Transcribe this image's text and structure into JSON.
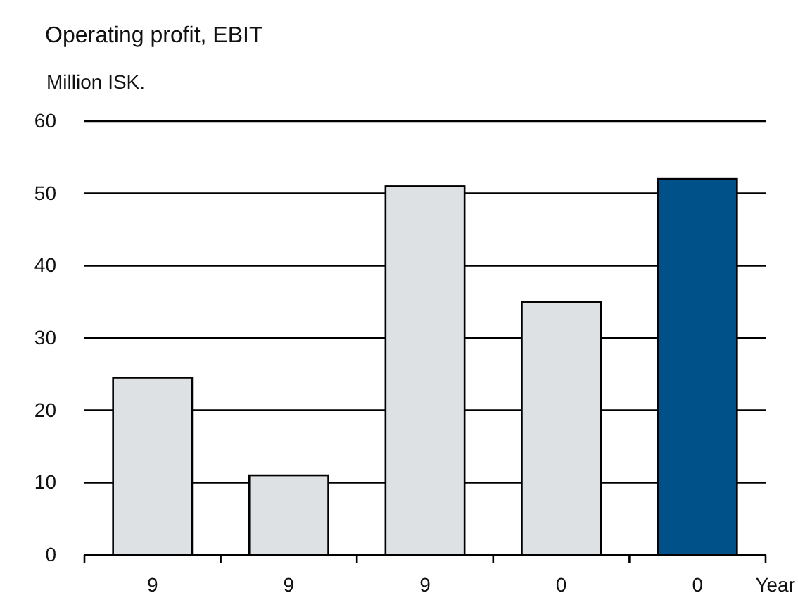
{
  "chart_data": {
    "type": "bar",
    "title": "Operating profit, EBIT",
    "ylabel": "Million ISK.",
    "xlabel": "Year",
    "categories": [
      "9",
      "9",
      "9",
      "0",
      "0"
    ],
    "values": [
      24.5,
      11,
      51,
      35,
      52
    ],
    "colors": [
      "#dde1e4",
      "#dde1e4",
      "#dde1e4",
      "#dde1e4",
      "#00508a"
    ],
    "ylim": [
      0,
      60
    ],
    "yticks": [
      0,
      10,
      20,
      30,
      40,
      50,
      60
    ],
    "grid": "y"
  }
}
